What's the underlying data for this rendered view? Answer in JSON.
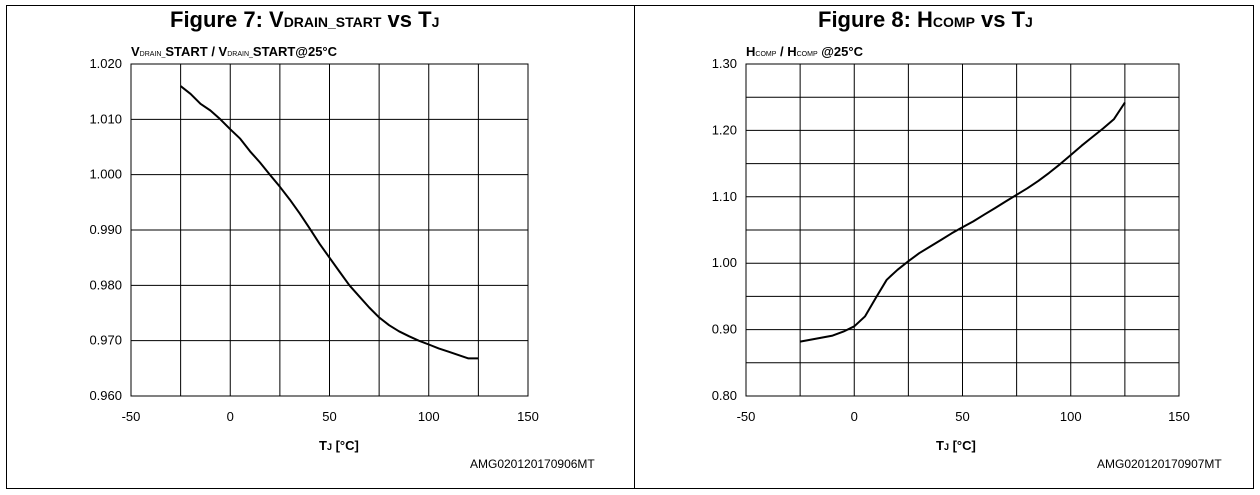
{
  "charts": [
    {
      "title_main": "Figure 7: V",
      "title_sub": "DRAIN_START",
      "title_vs": " vs T",
      "title_vs_sub": "J",
      "ylabel_parts": [
        "V",
        "DRAIN_",
        "START / V",
        "DRAIN_",
        "START@25°C"
      ],
      "xlabel_main": "T",
      "xlabel_sub": "J",
      "xlabel_unit": " [°C]",
      "code": "AMG020120170906MT"
    },
    {
      "title_main": "Figure 8: H",
      "title_sub": "COMP",
      "title_vs": " vs T",
      "title_vs_sub": "J",
      "ylabel_parts": [
        "H",
        "COMP",
        " / H",
        "COMP",
        " @25°C"
      ],
      "xlabel_main": "T",
      "xlabel_sub": "J",
      "xlabel_unit": "  [°C]",
      "code": "AMG020120170907MT"
    }
  ],
  "chart_data": [
    {
      "type": "line",
      "title": "Figure 7: VDRAIN_START vs TJ",
      "xlabel": "TJ [°C]",
      "ylabel": "VDRAIN_START / VDRAIN_START@25°C",
      "xlim": [
        -50,
        150
      ],
      "ylim": [
        0.96,
        1.02
      ],
      "x_ticks": [
        "-50",
        "0",
        "50",
        "100",
        "150"
      ],
      "y_ticks": [
        "0.960",
        "0.970",
        "0.980",
        "0.990",
        "1.000",
        "1.010",
        "1.020"
      ],
      "grid": true,
      "series": [
        {
          "x": [
            -25,
            -20,
            -15,
            -10,
            -5,
            0,
            5,
            10,
            15,
            20,
            25,
            30,
            35,
            40,
            45,
            50,
            55,
            60,
            65,
            70,
            75,
            80,
            85,
            90,
            95,
            100,
            105,
            110,
            115,
            120,
            125
          ],
          "y": [
            1.016,
            1.0146,
            1.0128,
            1.0116,
            1.01,
            1.0082,
            1.0065,
            1.0042,
            1.0022,
            1.0,
            0.9978,
            0.9955,
            0.993,
            0.9903,
            0.9875,
            0.985,
            0.9825,
            0.98,
            0.978,
            0.976,
            0.9742,
            0.9728,
            0.9717,
            0.9708,
            0.97,
            0.9693,
            0.9686,
            0.968,
            0.9674,
            0.9668,
            0.9668
          ]
        }
      ]
    },
    {
      "type": "line",
      "title": "Figure 8: HCOMP vs TJ",
      "xlabel": "TJ [°C]",
      "ylabel": "HCOMP / HCOMP @25°C",
      "xlim": [
        -50,
        150
      ],
      "ylim": [
        0.8,
        1.3
      ],
      "x_ticks": [
        "-50",
        "0",
        "50",
        "100",
        "150"
      ],
      "y_ticks": [
        "0.80",
        "0.90",
        "1.00",
        "1.10",
        "1.20",
        "1.30"
      ],
      "grid": true,
      "series": [
        {
          "x": [
            -25,
            -20,
            -15,
            -10,
            -5,
            0,
            5,
            10,
            15,
            20,
            25,
            30,
            35,
            40,
            45,
            50,
            55,
            60,
            65,
            70,
            75,
            80,
            85,
            90,
            95,
            100,
            105,
            110,
            115,
            120,
            125
          ],
          "y": [
            0.882,
            0.885,
            0.888,
            0.891,
            0.897,
            0.905,
            0.92,
            0.948,
            0.975,
            0.99,
            1.003,
            1.015,
            1.025,
            1.035,
            1.045,
            1.054,
            1.063,
            1.073,
            1.083,
            1.093,
            1.103,
            1.113,
            1.124,
            1.136,
            1.149,
            1.163,
            1.177,
            1.19,
            1.203,
            1.217,
            1.242
          ]
        }
      ]
    }
  ]
}
